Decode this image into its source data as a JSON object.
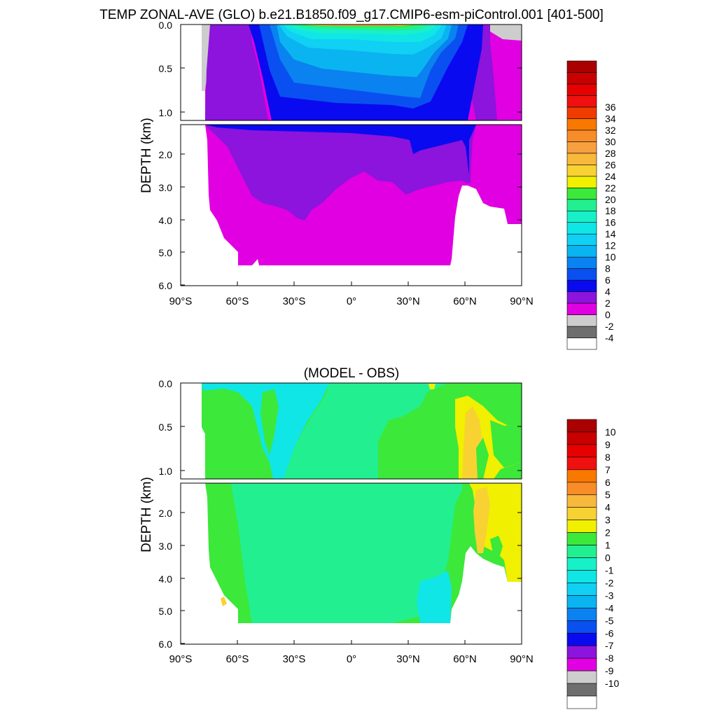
{
  "chart_data": [
    {
      "type": "heatmap",
      "title": "TEMP ZONAL-AVE (GLO) b.e21.B1850.f09_g17.CMIP6-esm-piControl.001 [401-500]",
      "ylabel": "DEPTH (km)",
      "x_ticks": [
        "90°S",
        "60°S",
        "30°S",
        "0°",
        "30°N",
        "60°N",
        "90°N"
      ],
      "x_tick_values": [
        -90,
        -60,
        -30,
        0,
        30,
        60,
        90
      ],
      "xlim": [
        -90,
        90
      ],
      "y_ticks_upper": [
        "0.0",
        "0.5",
        "1.0"
      ],
      "y_tick_values_upper": [
        0,
        0.5,
        1.0
      ],
      "ylim_upper": [
        0,
        1.1
      ],
      "y_ticks_lower": [
        "2.0",
        "3.0",
        "4.0",
        "5.0",
        "6.0"
      ],
      "y_tick_values_lower": [
        2,
        3,
        4,
        5,
        6
      ],
      "ylim_lower": [
        1.1,
        6.0
      ],
      "colorbar": {
        "labels": [
          "-4",
          "-2",
          "0",
          "2",
          "4",
          "6",
          "8",
          "10",
          "12",
          "14",
          "16",
          "18",
          "20",
          "22",
          "24",
          "26",
          "28",
          "30",
          "32",
          "34",
          "36"
        ],
        "colors": [
          "#ffffff",
          "#6e6e6e",
          "#cdcdcd",
          "#e100e1",
          "#8c14dc",
          "#0a0af0",
          "#0a50f0",
          "#0a82f0",
          "#0ab4f0",
          "#10d0f4",
          "#10e6e6",
          "#18f0c8",
          "#22f090",
          "#3ce83a",
          "#f0f000",
          "#f8d232",
          "#f8b83c",
          "#f8a040",
          "#f88c28",
          "#f87800",
          "#f03c00",
          "#f01010",
          "#e60000",
          "#c80000",
          "#aa0000"
        ]
      }
    },
    {
      "type": "heatmap",
      "title": "(MODEL - OBS)",
      "ylabel": "DEPTH (km)",
      "x_ticks": [
        "90°S",
        "60°S",
        "30°S",
        "0°",
        "30°N",
        "60°N",
        "90°N"
      ],
      "x_tick_values": [
        -90,
        -60,
        -30,
        0,
        30,
        60,
        90
      ],
      "xlim": [
        -90,
        90
      ],
      "y_ticks_upper": [
        "0.0",
        "0.5",
        "1.0"
      ],
      "y_tick_values_upper": [
        0,
        0.5,
        1.0
      ],
      "ylim_upper": [
        0,
        1.1
      ],
      "y_ticks_lower": [
        "2.0",
        "3.0",
        "4.0",
        "5.0",
        "6.0"
      ],
      "y_tick_values_lower": [
        2,
        3,
        4,
        5,
        6
      ],
      "ylim_lower": [
        1.1,
        6.0
      ],
      "colorbar": {
        "labels": [
          "10",
          "9",
          "8",
          "7",
          "6",
          "5",
          "4",
          "3",
          "2",
          "1",
          "0",
          "-1",
          "-2",
          "-3",
          "-4",
          "-5",
          "-6",
          "-7",
          "-8",
          "-9",
          "-10"
        ],
        "colors": [
          "#aa0000",
          "#c80000",
          "#e60000",
          "#f01010",
          "#f87800",
          "#f88c28",
          "#f8b83c",
          "#f8d232",
          "#f0f000",
          "#3ce83a",
          "#22f090",
          "#18f0c8",
          "#10e6e6",
          "#10d0f4",
          "#0ab4f0",
          "#0a82f0",
          "#0a50f0",
          "#0a0af0",
          "#8c14dc",
          "#e100e1",
          "#cdcdcd",
          "#6e6e6e",
          "#ffffff"
        ]
      }
    }
  ]
}
